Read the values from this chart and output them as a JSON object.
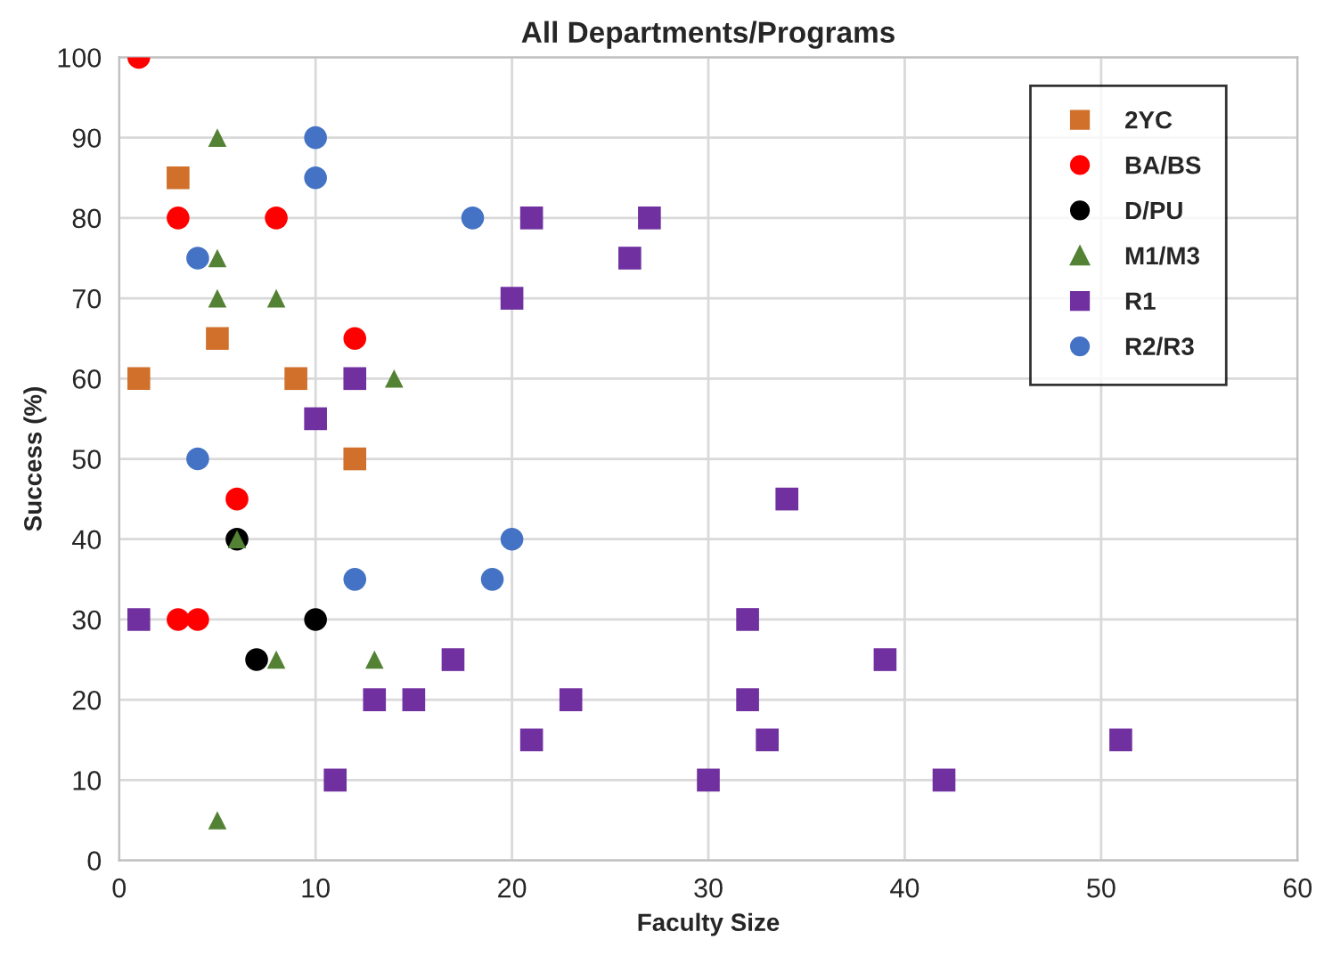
{
  "chart_data": {
    "type": "scatter",
    "title": "All Departments/Programs",
    "xlabel": "Faculty Size",
    "ylabel": "Success (%)",
    "xlim": [
      0,
      60
    ],
    "xticks": [
      0,
      10,
      20,
      30,
      40,
      50,
      60
    ],
    "ylim": [
      0,
      100
    ],
    "yticks": [
      0,
      10,
      20,
      30,
      40,
      50,
      60,
      70,
      80,
      90,
      100
    ],
    "grid": true,
    "legend": "top right",
    "series": [
      {
        "name": "2YC",
        "color": "#d0702b",
        "marker": "square",
        "x": [
          3,
          5,
          1,
          9,
          12
        ],
        "values": [
          85,
          65,
          60,
          60,
          50
        ]
      },
      {
        "name": "BA/BS",
        "color": "#ff0000",
        "marker": "circle",
        "x": [
          1,
          3,
          8,
          12,
          6,
          3,
          4
        ],
        "values": [
          100,
          80,
          80,
          65,
          45,
          30,
          30
        ]
      },
      {
        "name": "D/PU",
        "color": "#000000",
        "marker": "circle",
        "x": [
          6,
          10,
          7
        ],
        "values": [
          40,
          30,
          25
        ]
      },
      {
        "name": "M1/M3",
        "color": "#548235",
        "marker": "triangle",
        "x": [
          5,
          5,
          5,
          8,
          14,
          6,
          8,
          13,
          5
        ],
        "values": [
          90,
          75,
          70,
          70,
          60,
          40,
          25,
          25,
          5
        ]
      },
      {
        "name": "R1",
        "color": "#7030a0",
        "marker": "square",
        "x": [
          1,
          12,
          10,
          21,
          27,
          26,
          20,
          34,
          32,
          17,
          39,
          13,
          15,
          23,
          32,
          21,
          33,
          51,
          11,
          30,
          42
        ],
        "values": [
          30,
          60,
          55,
          80,
          80,
          75,
          70,
          45,
          30,
          25,
          25,
          20,
          20,
          20,
          20,
          15,
          15,
          15,
          10,
          10,
          10
        ]
      },
      {
        "name": "R2/R3",
        "color": "#4472c4",
        "marker": "circle",
        "x": [
          10,
          10,
          18,
          4,
          4,
          20,
          12,
          19
        ],
        "values": [
          90,
          85,
          80,
          75,
          50,
          40,
          35,
          35
        ]
      }
    ]
  }
}
